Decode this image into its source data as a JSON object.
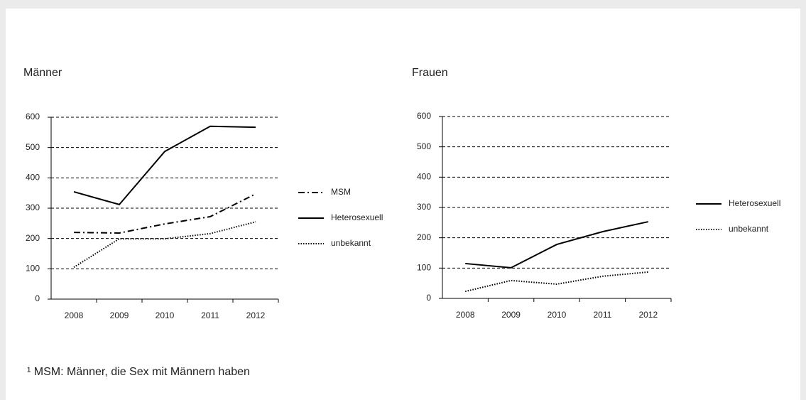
{
  "chart_data": [
    {
      "type": "line",
      "title": "Männer",
      "categories": [
        "2008",
        "2009",
        "2010",
        "2011",
        "2012"
      ],
      "series": [
        {
          "name": "MSM",
          "color": "#000000",
          "style": "dashdot",
          "values": [
            220,
            218,
            248,
            272,
            347
          ]
        },
        {
          "name": "Heterosexuell",
          "color": "#000000",
          "style": "solid",
          "values": [
            354,
            312,
            487,
            570,
            567
          ]
        },
        {
          "name": "unbekannt",
          "color": "#000000",
          "style": "dotted",
          "values": [
            105,
            199,
            199,
            216,
            255
          ]
        }
      ],
      "ylim": [
        0,
        600
      ],
      "yticks": [
        0,
        100,
        200,
        300,
        400,
        500,
        600
      ],
      "grid": true
    },
    {
      "type": "line",
      "title": "Frauen",
      "categories": [
        "2008",
        "2009",
        "2010",
        "2011",
        "2012"
      ],
      "series": [
        {
          "name": "Heterosexuell",
          "color": "#000000",
          "style": "solid",
          "values": [
            115,
            101,
            178,
            220,
            253
          ]
        },
        {
          "name": "unbekannt",
          "color": "#000000",
          "style": "dotted",
          "values": [
            23,
            59,
            47,
            73,
            87
          ]
        }
      ],
      "ylim": [
        0,
        600
      ],
      "yticks": [
        0,
        100,
        200,
        300,
        400,
        500,
        600
      ],
      "grid": true
    }
  ],
  "footnote": "¹ MSM: Männer, die Sex mit Männern haben"
}
